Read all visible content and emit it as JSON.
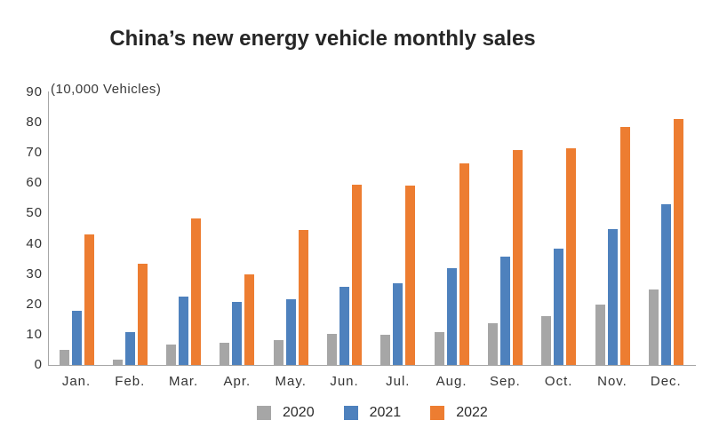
{
  "title": "China’s new energy vehicle monthly sales",
  "unit_label": "(10,000 Vehicles)",
  "colors": {
    "series_2020": "#A6A6A6",
    "series_2021": "#4E81BD",
    "series_2022": "#ED7D31",
    "axis": "#A6A6A6",
    "text": "#333333",
    "title_text": "#262626"
  },
  "legend": {
    "position": "bottom",
    "items": [
      "2020",
      "2021",
      "2022"
    ]
  },
  "chart_data": {
    "type": "bar",
    "title": "China’s new energy vehicle monthly sales",
    "xlabel": "",
    "ylabel": "(10,000 Vehicles)",
    "categories": [
      "Jan.",
      "Feb.",
      "Mar.",
      "Apr.",
      "May.",
      "Jun.",
      "Jul.",
      "Aug.",
      "Sep.",
      "Oct.",
      "Nov.",
      "Dec."
    ],
    "series": [
      {
        "name": "2020",
        "color": "#A6A6A6",
        "values": [
          5.0,
          1.8,
          6.6,
          7.3,
          8.2,
          10.4,
          9.9,
          10.9,
          13.8,
          16.0,
          20.0,
          24.8
        ]
      },
      {
        "name": "2021",
        "color": "#4E81BD",
        "values": [
          18.0,
          10.9,
          22.6,
          20.7,
          21.7,
          25.7,
          27.1,
          32.1,
          35.7,
          38.3,
          45.0,
          53.0
        ]
      },
      {
        "name": "2022",
        "color": "#ED7D31",
        "values": [
          43.2,
          33.4,
          48.4,
          30.0,
          44.7,
          59.5,
          59.3,
          66.6,
          70.8,
          71.4,
          78.6,
          81.3
        ]
      }
    ],
    "ylim": [
      0,
      90
    ],
    "yticks": [
      0,
      10,
      20,
      30,
      40,
      50,
      60,
      70,
      80,
      90
    ],
    "grid": false,
    "legend_position": "bottom"
  }
}
